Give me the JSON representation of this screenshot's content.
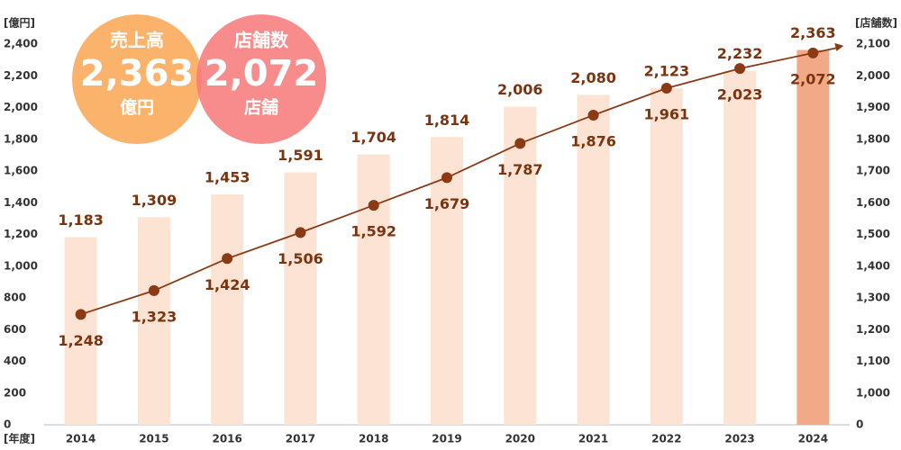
{
  "chart_data": {
    "type": "bar-line",
    "y_axis_label": "[億円]",
    "y2_axis_label": "[店舗数]",
    "x_axis_label": "[年度]",
    "categories": [
      "2014",
      "2015",
      "2016",
      "2017",
      "2018",
      "2019",
      "2020",
      "2021",
      "2022",
      "2023",
      "2024"
    ],
    "series": [
      {
        "name": "売上高",
        "type": "bar",
        "colors": [
          "#fde3d3",
          "#fde3d3",
          "#fde3d3",
          "#fde3d3",
          "#fde3d3",
          "#fde3d3",
          "#fde3d3",
          "#fde3d3",
          "#fde3d3",
          "#fde3d3",
          "#f2a987"
        ],
        "values": [
          1183,
          1309,
          1453,
          1591,
          1704,
          1814,
          2006,
          2080,
          2123,
          2232,
          2363
        ],
        "value_labels": [
          "1,183",
          "1,309",
          "1,453",
          "1,591",
          "1,704",
          "1,814",
          "2,006",
          "2,080",
          "2,123",
          "2,232",
          "2,363"
        ]
      },
      {
        "name": "店舗数",
        "type": "line",
        "axis": "y2",
        "color": "#8b3a14",
        "values": [
          1248,
          1323,
          1424,
          1506,
          1592,
          1679,
          1787,
          1876,
          1961,
          2023,
          2072
        ],
        "value_labels": [
          "1,248",
          "1,323",
          "1,424",
          "1,506",
          "1,592",
          "1,679",
          "1,787",
          "1,876",
          "1,961",
          "2,023",
          "2,072"
        ]
      }
    ],
    "ylim": [
      0,
      2400
    ],
    "yticks": [
      0,
      200,
      400,
      600,
      800,
      {
        "value": 1000,
        "label": "1,000"
      },
      {
        "value": 1200,
        "label": "1,200"
      },
      {
        "value": 1400,
        "label": "1,400"
      },
      {
        "value": 1600,
        "label": "1,600"
      },
      {
        "value": 1800,
        "label": "1,800"
      },
      {
        "value": 2000,
        "label": "2,000"
      },
      {
        "value": 2200,
        "label": "2,200"
      },
      {
        "value": 2400,
        "label": "2,400"
      }
    ],
    "y2lim": [
      0,
      2100
    ],
    "y2_axis_break": [
      0,
      900
    ],
    "y2ticks": [
      0,
      {
        "value": 1000,
        "label": "1,000"
      },
      {
        "value": 1100,
        "label": "1,100"
      },
      {
        "value": 1200,
        "label": "1,200"
      },
      {
        "value": 1300,
        "label": "1,300"
      },
      {
        "value": 1400,
        "label": "1,400"
      },
      {
        "value": 1500,
        "label": "1,500"
      },
      {
        "value": 1600,
        "label": "1,600"
      },
      {
        "value": 1700,
        "label": "1,700"
      },
      {
        "value": 1800,
        "label": "1,800"
      },
      {
        "value": 1900,
        "label": "1,900"
      },
      {
        "value": 2000,
        "label": "2,000"
      },
      {
        "value": 2100,
        "label": "2,100"
      }
    ],
    "grid": false,
    "annotations": [
      {
        "title": "売上高",
        "value": "2,363",
        "unit": "億円",
        "color": "#fbb26a"
      },
      {
        "title": "店舗数",
        "value": "2,072",
        "unit": "店舗",
        "color": "#f77b7b"
      }
    ]
  }
}
